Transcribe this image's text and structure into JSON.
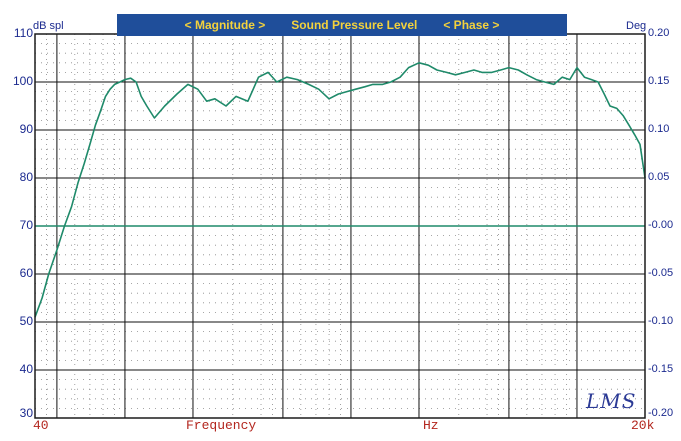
{
  "header": {
    "magnitude_label": "< Magnitude >",
    "title": "Sound Pressure Level",
    "phase_label": "< Phase >",
    "bar_color": "#1f4e9a",
    "text_color": "#f4d23c"
  },
  "chart_data": {
    "type": "line",
    "left_axis": {
      "label": "dB spl",
      "ticks": [
        "110",
        "100",
        "90",
        "80",
        "70",
        "60",
        "50",
        "40",
        "30"
      ],
      "ylim": [
        30,
        110
      ]
    },
    "right_axis": {
      "label": "Deg",
      "ticks": [
        "0.20",
        "0.15",
        "0.10",
        "0.05",
        "-0.00",
        "-0.05",
        "-0.10",
        "-0.15",
        "-0.20"
      ],
      "ylim": [
        -0.2,
        0.2
      ]
    },
    "x_axis": {
      "scale": "log",
      "xlim": [
        40,
        20000
      ],
      "label_left": "40",
      "label_mid": "Frequency",
      "label_hz": "Hz",
      "label_right": "20k"
    },
    "grid": true,
    "series": [
      {
        "axis": "left",
        "color": "#1f8a6a",
        "x": [
          40,
          43,
          46,
          50,
          54,
          58,
          62,
          66,
          70,
          74,
          78,
          82,
          86,
          90,
          95,
          100,
          106,
          112,
          118,
          125,
          135,
          150,
          170,
          190,
          210,
          230,
          250,
          280,
          310,
          350,
          390,
          430,
          470,
          520,
          580,
          650,
          720,
          800,
          880,
          960,
          1050,
          1150,
          1250,
          1380,
          1500,
          1650,
          1800,
          2000,
          2200,
          2400,
          2650,
          2900,
          3200,
          3500,
          3800,
          4200,
          4600,
          5000,
          5500,
          6000,
          6600,
          7200,
          7900,
          8600,
          9300,
          10000,
          10800,
          11600,
          12400,
          13200,
          14000,
          15000,
          16000,
          17000,
          18000,
          19000,
          20000
        ],
        "y": [
          51,
          55,
          60,
          65,
          70,
          74,
          79,
          83,
          87,
          91,
          94,
          97,
          98.5,
          99.5,
          100,
          100.5,
          100.8,
          100,
          97,
          95,
          92.5,
          95,
          97.5,
          99.5,
          98.5,
          96,
          96.5,
          95,
          97,
          96,
          101,
          102,
          100,
          101,
          100.5,
          99.5,
          98.5,
          96.5,
          97.5,
          98,
          98.5,
          99,
          99.5,
          99.5,
          100,
          101,
          103,
          104,
          103.5,
          102.5,
          102,
          101.5,
          102,
          102.5,
          102,
          102,
          102.5,
          103,
          102.5,
          101.5,
          100.5,
          100,
          99.5,
          101,
          100.5,
          103,
          101,
          100.5,
          100,
          97.5,
          95,
          94.5,
          93,
          91,
          89,
          87,
          80
        ]
      },
      {
        "axis": "right",
        "color": "#1f8a6a",
        "x": [
          40,
          20000
        ],
        "y": [
          0,
          0
        ]
      }
    ]
  },
  "logo": {
    "text": "LMS"
  },
  "colors": {
    "frame": "#1b1b1b",
    "grid_major": "#111111",
    "grid_dotted": "#8a8a8a",
    "axis_text": "#1b2a8f",
    "x_text": "#b3261e",
    "trace": "#1f8a6a"
  }
}
